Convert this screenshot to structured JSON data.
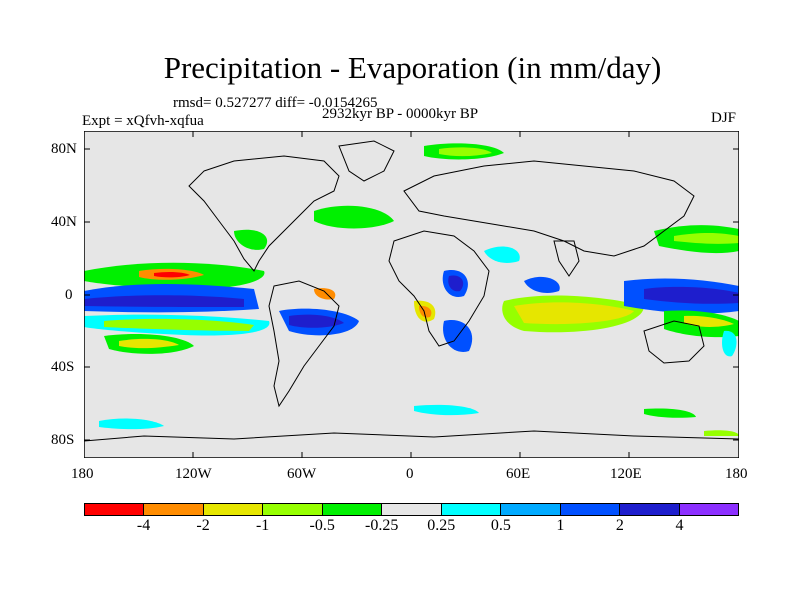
{
  "title": "Precipitation - Evaporation (in mm/day)",
  "stats": "rmsd= 0.527277 diff= -0.0154265",
  "period": "2932kyr BP - 0000kyr BP",
  "expt": "Expt = xQfvh-xqfua",
  "season": "DJF",
  "map": {
    "lat_ticks": [
      "80N",
      "40N",
      "0",
      "40S",
      "80S"
    ],
    "lon_ticks": [
      "180",
      "120W",
      "60W",
      "0",
      "60E",
      "120E",
      "180"
    ],
    "land_color": "#e6e6e6"
  },
  "colorbar": {
    "colors": [
      "#ff0000",
      "#ff8c00",
      "#e6e600",
      "#96ff00",
      "#00f000",
      "#e6e6e6",
      "#00ffff",
      "#00aaff",
      "#0050ff",
      "#1e1ecd",
      "#8c2fff"
    ],
    "labels": [
      "-4",
      "-2",
      "-1",
      "-0.5",
      "-0.25",
      "0.25",
      "0.5",
      "1",
      "2",
      "4"
    ]
  }
}
